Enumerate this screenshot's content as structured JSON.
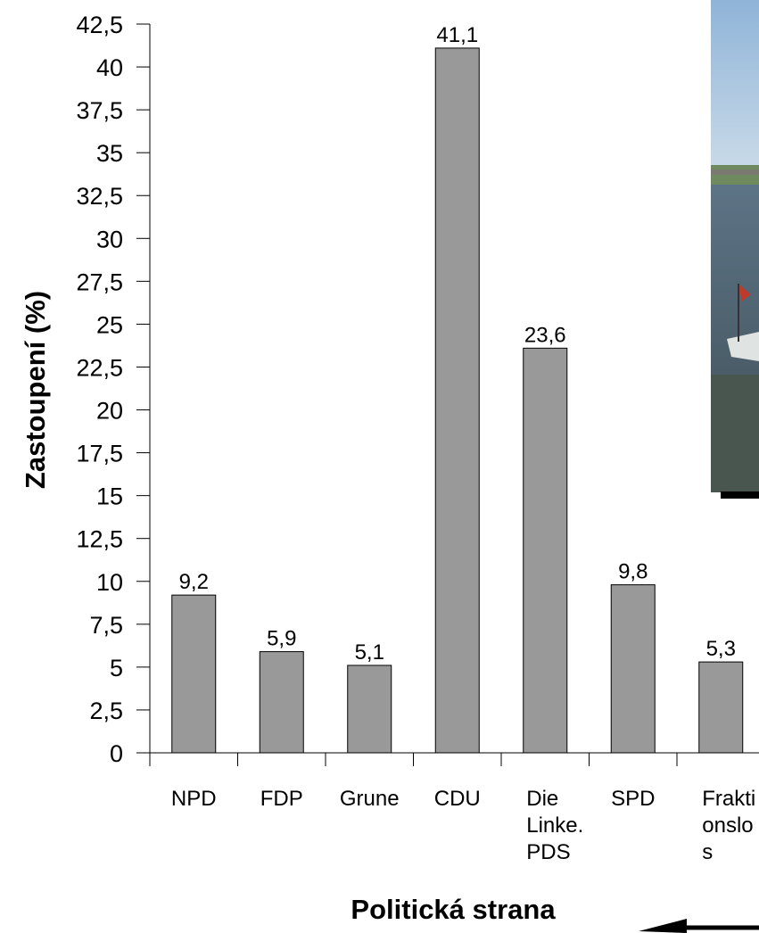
{
  "chart_data": {
    "type": "bar",
    "title": "",
    "xlabel": "Politická strana",
    "ylabel": "Zastoupení (%)",
    "ylim": [
      0,
      42.5
    ],
    "ytick_step": 2.5,
    "ytick_labels": [
      "0",
      "2,5",
      "5",
      "7,5",
      "10",
      "12,5",
      "15",
      "17,5",
      "20",
      "22,5",
      "25",
      "27,5",
      "30",
      "32,5",
      "35",
      "37,5",
      "40",
      "42,5"
    ],
    "categories": [
      "NPD",
      "FDP",
      "Grune",
      "CDU",
      "Die Linke. PDS",
      "SPD",
      "Frakti onslo s"
    ],
    "category_lines": [
      [
        "NPD"
      ],
      [
        "FDP"
      ],
      [
        "Grune"
      ],
      [
        "CDU"
      ],
      [
        "Die",
        "Linke.",
        "PDS"
      ],
      [
        "SPD"
      ],
      [
        "Frakti",
        "onslo",
        "s"
      ]
    ],
    "values": [
      9.2,
      5.9,
      5.1,
      41.1,
      23.6,
      9.8,
      5.3
    ],
    "value_labels": [
      "9,2",
      "5,9",
      "5,1",
      "41,1",
      "23,6",
      "9,8",
      "5,3"
    ],
    "bar_color": "#999999",
    "grid": false,
    "legend": "none"
  },
  "decoration": {
    "photo": "river-photo-with-bridge-and-boat",
    "arrow": "arrow-icon"
  }
}
